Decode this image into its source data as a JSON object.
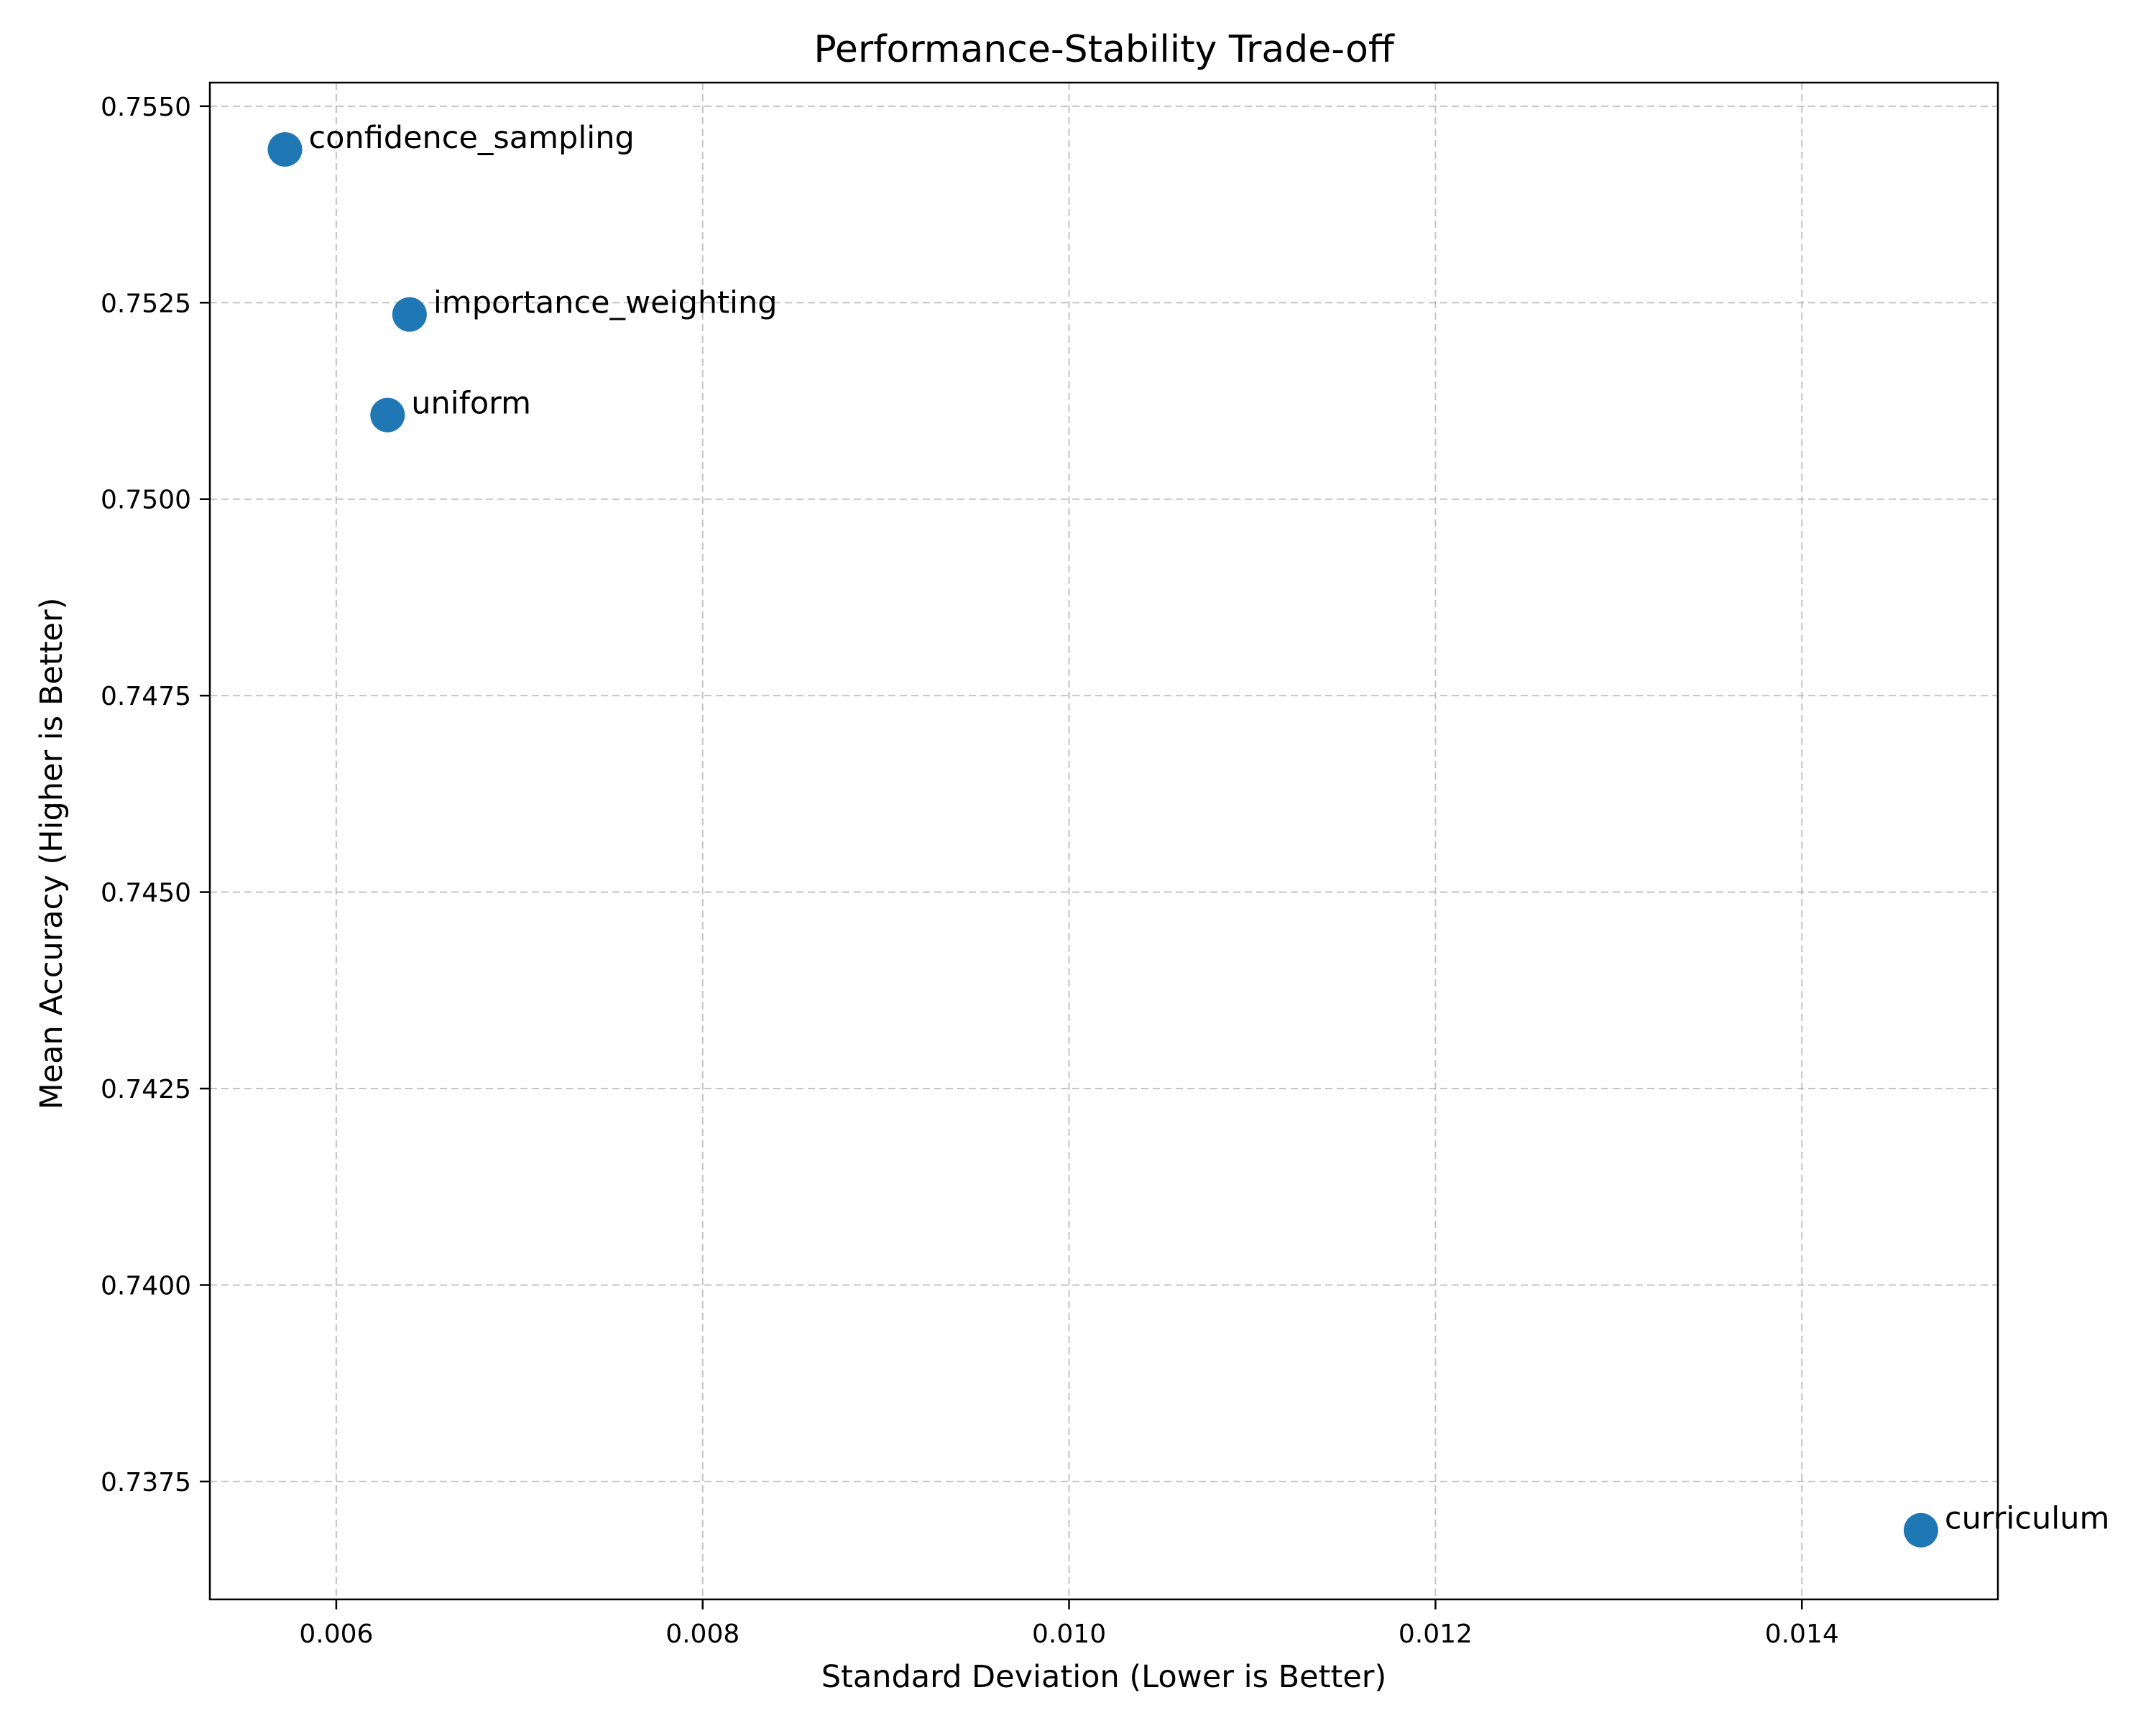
{
  "chart_data": {
    "type": "scatter",
    "title": "Performance-Stability Trade-off",
    "xlabel": "Standard Deviation (Lower is Better)",
    "ylabel": "Mean Accuracy (Higher is Better)",
    "xlim": [
      0.00531,
      0.01507
    ],
    "ylim": [
      0.736,
      0.7553
    ],
    "xticks": [
      0.006,
      0.008,
      0.01,
      0.012,
      0.014
    ],
    "xtick_labels": [
      "0.006",
      "0.008",
      "0.010",
      "0.012",
      "0.014"
    ],
    "yticks": [
      0.7375,
      0.74,
      0.7425,
      0.745,
      0.7475,
      0.75,
      0.7525,
      0.755
    ],
    "ytick_labels": [
      "0.7375",
      "0.7400",
      "0.7425",
      "0.7450",
      "0.7475",
      "0.7500",
      "0.7525",
      "0.7550"
    ],
    "grid": true,
    "grid_style": "dashed",
    "marker_color": "#1f77b4",
    "points": [
      {
        "label": "confidence_sampling",
        "x": 0.00572,
        "y": 0.75445
      },
      {
        "label": "importance_weighting",
        "x": 0.0064,
        "y": 0.75235
      },
      {
        "label": "uniform",
        "x": 0.00628,
        "y": 0.75107
      },
      {
        "label": "curriculum",
        "x": 0.01465,
        "y": 0.73688
      }
    ]
  }
}
